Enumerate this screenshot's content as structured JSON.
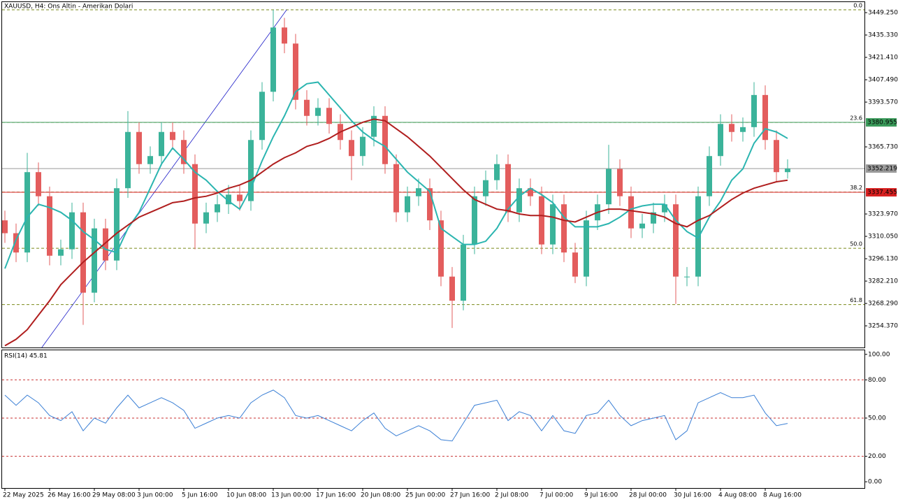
{
  "chart_data": [
    {
      "type": "candlestick",
      "title": "XAUUSD, H4:  Ons Altin - Amerikan Dolari",
      "categories": [
        "22 May 2025",
        null,
        null,
        null,
        "26 May 16:00",
        null,
        null,
        null,
        "29 May 08:00",
        null,
        null,
        null,
        "3 Jun 00:00",
        null,
        null,
        null,
        "5 Jun 16:00",
        null,
        null,
        null,
        "10 Jun 08:00",
        null,
        null,
        null,
        "13 Jun 00:00",
        null,
        null,
        null,
        "17 Jun 16:00",
        null,
        null,
        null,
        "20 Jun 08:00",
        null,
        null,
        null,
        "25 Jun 00:00",
        null,
        null,
        null,
        "27 Jun 16:00",
        null,
        null,
        null,
        "2 Jul 08:00",
        null,
        null,
        null,
        "7 Jul 00:00",
        null,
        null,
        null,
        "9 Jul 16:00",
        null,
        null,
        null,
        "28 Jul 00:00",
        null,
        null,
        null,
        "30 Jul 16:00",
        null,
        null,
        null,
        "4 Aug 08:00",
        null,
        null,
        null,
        "8 Aug 16:00",
        null,
        null
      ],
      "open": [
        3320,
        3312,
        3300,
        3350,
        3335,
        3298,
        3302,
        3325,
        3275,
        3315,
        3295,
        3340,
        3375,
        3355,
        3360,
        3375,
        3370,
        3355,
        3318,
        3325,
        3330,
        3336,
        3332,
        3370,
        3400,
        3440,
        3430,
        3395,
        3385,
        3390,
        3380,
        3370,
        3360,
        3372,
        3385,
        3355,
        3325,
        3335,
        3340,
        3320,
        3285,
        3270,
        3305,
        3335,
        3345,
        3355,
        3325,
        3340,
        3335,
        3305,
        3330,
        3300,
        3285,
        3320,
        3330,
        3352,
        3335,
        3315,
        3318,
        3325,
        3330,
        3285,
        3285,
        3335,
        3360,
        3380,
        3375,
        3378,
        3398,
        3370,
        3350
      ],
      "high": [
        3326,
        3318,
        3362,
        3356,
        3341,
        3308,
        3331,
        3331,
        3321,
        3321,
        3346,
        3388,
        3381,
        3366,
        3381,
        3381,
        3376,
        3361,
        3331,
        3336,
        3342,
        3342,
        3376,
        3406,
        3451,
        3446,
        3436,
        3401,
        3396,
        3396,
        3386,
        3376,
        3378,
        3391,
        3391,
        3361,
        3341,
        3346,
        3346,
        3326,
        3291,
        3311,
        3341,
        3351,
        3361,
        3361,
        3346,
        3346,
        3341,
        3336,
        3336,
        3306,
        3326,
        3336,
        3367,
        3358,
        3341,
        3324,
        3331,
        3336,
        3336,
        3291,
        3341,
        3366,
        3386,
        3386,
        3384,
        3406,
        3404,
        3376,
        3358
      ],
      "low": [
        3306,
        3294,
        3294,
        3329,
        3292,
        3292,
        3296,
        3255,
        3269,
        3289,
        3289,
        3334,
        3349,
        3349,
        3354,
        3364,
        3349,
        3302,
        3312,
        3319,
        3324,
        3326,
        3326,
        3364,
        3394,
        3424,
        3389,
        3379,
        3379,
        3374,
        3364,
        3345,
        3354,
        3366,
        3349,
        3319,
        3319,
        3329,
        3314,
        3279,
        3253,
        3264,
        3299,
        3329,
        3339,
        3319,
        3319,
        3329,
        3299,
        3299,
        3294,
        3281,
        3279,
        3314,
        3324,
        3329,
        3309,
        3309,
        3312,
        3319,
        3268,
        3279,
        3279,
        3329,
        3354,
        3369,
        3369,
        3372,
        3364,
        3344,
        3346
      ],
      "close": [
        3312,
        3300,
        3350,
        3335,
        3298,
        3302,
        3325,
        3275,
        3315,
        3295,
        3340,
        3375,
        3355,
        3360,
        3375,
        3370,
        3355,
        3318,
        3325,
        3330,
        3336,
        3332,
        3370,
        3400,
        3440,
        3430,
        3395,
        3385,
        3390,
        3380,
        3370,
        3360,
        3372,
        3385,
        3355,
        3325,
        3335,
        3340,
        3320,
        3285,
        3270,
        3305,
        3335,
        3345,
        3355,
        3325,
        3340,
        3335,
        3305,
        3330,
        3300,
        3285,
        3320,
        3330,
        3352,
        3335,
        3315,
        3318,
        3325,
        3330,
        3285,
        3285,
        3335,
        3360,
        3380,
        3375,
        3378,
        3398,
        3370,
        3350,
        3352.219
      ],
      "up_color": "#3bb39a",
      "down_color": "#e35d5d",
      "overlays": [
        {
          "color": "#2bb5b0",
          "values": [
            3290,
            3308,
            3322,
            3330,
            3328,
            3325,
            3320,
            3313,
            3308,
            3302,
            3300,
            3315,
            3325,
            3340,
            3355,
            3365,
            3358,
            3350,
            3345,
            3338,
            3332,
            3327,
            3340,
            3357,
            3372,
            3385,
            3400,
            3405,
            3406,
            3398,
            3390,
            3382,
            3375,
            3370,
            3366,
            3358,
            3350,
            3344,
            3338,
            3315,
            3310,
            3305,
            3305,
            3307,
            3315,
            3327,
            3335,
            3340,
            3336,
            3331,
            3322,
            3316,
            3316,
            3316,
            3318,
            3322,
            3327,
            3329,
            3330,
            3330,
            3320,
            3313,
            3309,
            3322,
            3332,
            3345,
            3352,
            3368,
            3377,
            3375,
            3371
          ]
        },
        {
          "color": "#b01e1e",
          "values": [
            3242,
            3246,
            3252,
            3261,
            3270,
            3280,
            3287,
            3294,
            3300,
            3306,
            3312,
            3317,
            3322,
            3325,
            3328,
            3331,
            3332,
            3334,
            3335,
            3337,
            3340,
            3342,
            3345,
            3350,
            3355,
            3359,
            3362,
            3366,
            3368,
            3371,
            3375,
            3378,
            3381,
            3383,
            3382,
            3377,
            3372,
            3366,
            3360,
            3353,
            3346,
            3339,
            3333,
            3330,
            3327,
            3326,
            3324,
            3323,
            3323,
            3322,
            3320,
            3319,
            3322,
            3325,
            3327,
            3327,
            3326,
            3325,
            3324,
            3322,
            3318,
            3316,
            3320,
            3323,
            3328,
            3333,
            3337,
            3340,
            3342,
            3344,
            3345
          ]
        }
      ],
      "trendline": {
        "color": "#1c1cc8",
        "x": [
          3.3,
          25.2
        ],
        "y": [
          3240.9,
          3451.0
        ]
      },
      "fib_levels": [
        {
          "label": "0.0",
          "price": 3451.0
        },
        {
          "label": "23.6",
          "price": 3380.9
        },
        {
          "label": "38.2",
          "price": 3337.6
        },
        {
          "label": "50.0",
          "price": 3302.6
        },
        {
          "label": "61.8",
          "price": 3267.6
        }
      ],
      "fib_color": "#7a8a1a",
      "price_lines": [
        {
          "value": 3380.955,
          "color": "#3a9a5a",
          "text_color": "#000000"
        },
        {
          "value": 3352.219,
          "color": "#9a9a9a",
          "text_color": "#000000"
        },
        {
          "value": 3337.455,
          "color": "#d82020",
          "text_color": "#ffffff"
        }
      ],
      "ylim": [
        3240.9,
        3455.8
      ],
      "yticks": [
        {
          "value": 3449.25,
          "label": "3449.250"
        },
        {
          "value": 3435.33,
          "label": "3435.330"
        },
        {
          "value": 3421.41,
          "label": "3421.410"
        },
        {
          "value": 3407.49,
          "label": "3407.490"
        },
        {
          "value": 3393.57,
          "label": "3393.570"
        },
        {
          "value": 3365.73,
          "label": "3365.730"
        },
        {
          "value": 3323.97,
          "label": "3323.970"
        },
        {
          "value": 3310.05,
          "label": "3310.050"
        },
        {
          "value": 3296.13,
          "label": "3296.130"
        },
        {
          "value": 3282.21,
          "label": "3282.210"
        },
        {
          "value": 3268.29,
          "label": "3268.290"
        },
        {
          "value": 3254.37,
          "label": "3254.370"
        }
      ]
    },
    {
      "type": "line",
      "title": "RSI(14) 45.81",
      "color": "#3a7fd5",
      "values": [
        68,
        60,
        68,
        62,
        52,
        48,
        55,
        40,
        50,
        46,
        58,
        68,
        58,
        62,
        66,
        62,
        56,
        42,
        46,
        50,
        52,
        50,
        62,
        68,
        72,
        66,
        52,
        50,
        52,
        48,
        44,
        40,
        48,
        54,
        42,
        36,
        40,
        44,
        40,
        33,
        32,
        46,
        60,
        62,
        64,
        48,
        55,
        52,
        40,
        52,
        40,
        38,
        52,
        54,
        64,
        52,
        44,
        48,
        50,
        52,
        33,
        40,
        62,
        66,
        70,
        66,
        66,
        68,
        54,
        44,
        45.81
      ],
      "levels": [
        80,
        50,
        20
      ],
      "level_color": "#c83232",
      "ylim": [
        -4.9,
        103.2
      ],
      "yticks": [
        {
          "value": 100,
          "label": "100.00"
        },
        {
          "value": 80,
          "label": "80.00"
        },
        {
          "value": 50,
          "label": "50.00"
        },
        {
          "value": 20,
          "label": "20.00"
        },
        {
          "value": 0,
          "label": "0.00"
        }
      ]
    }
  ]
}
